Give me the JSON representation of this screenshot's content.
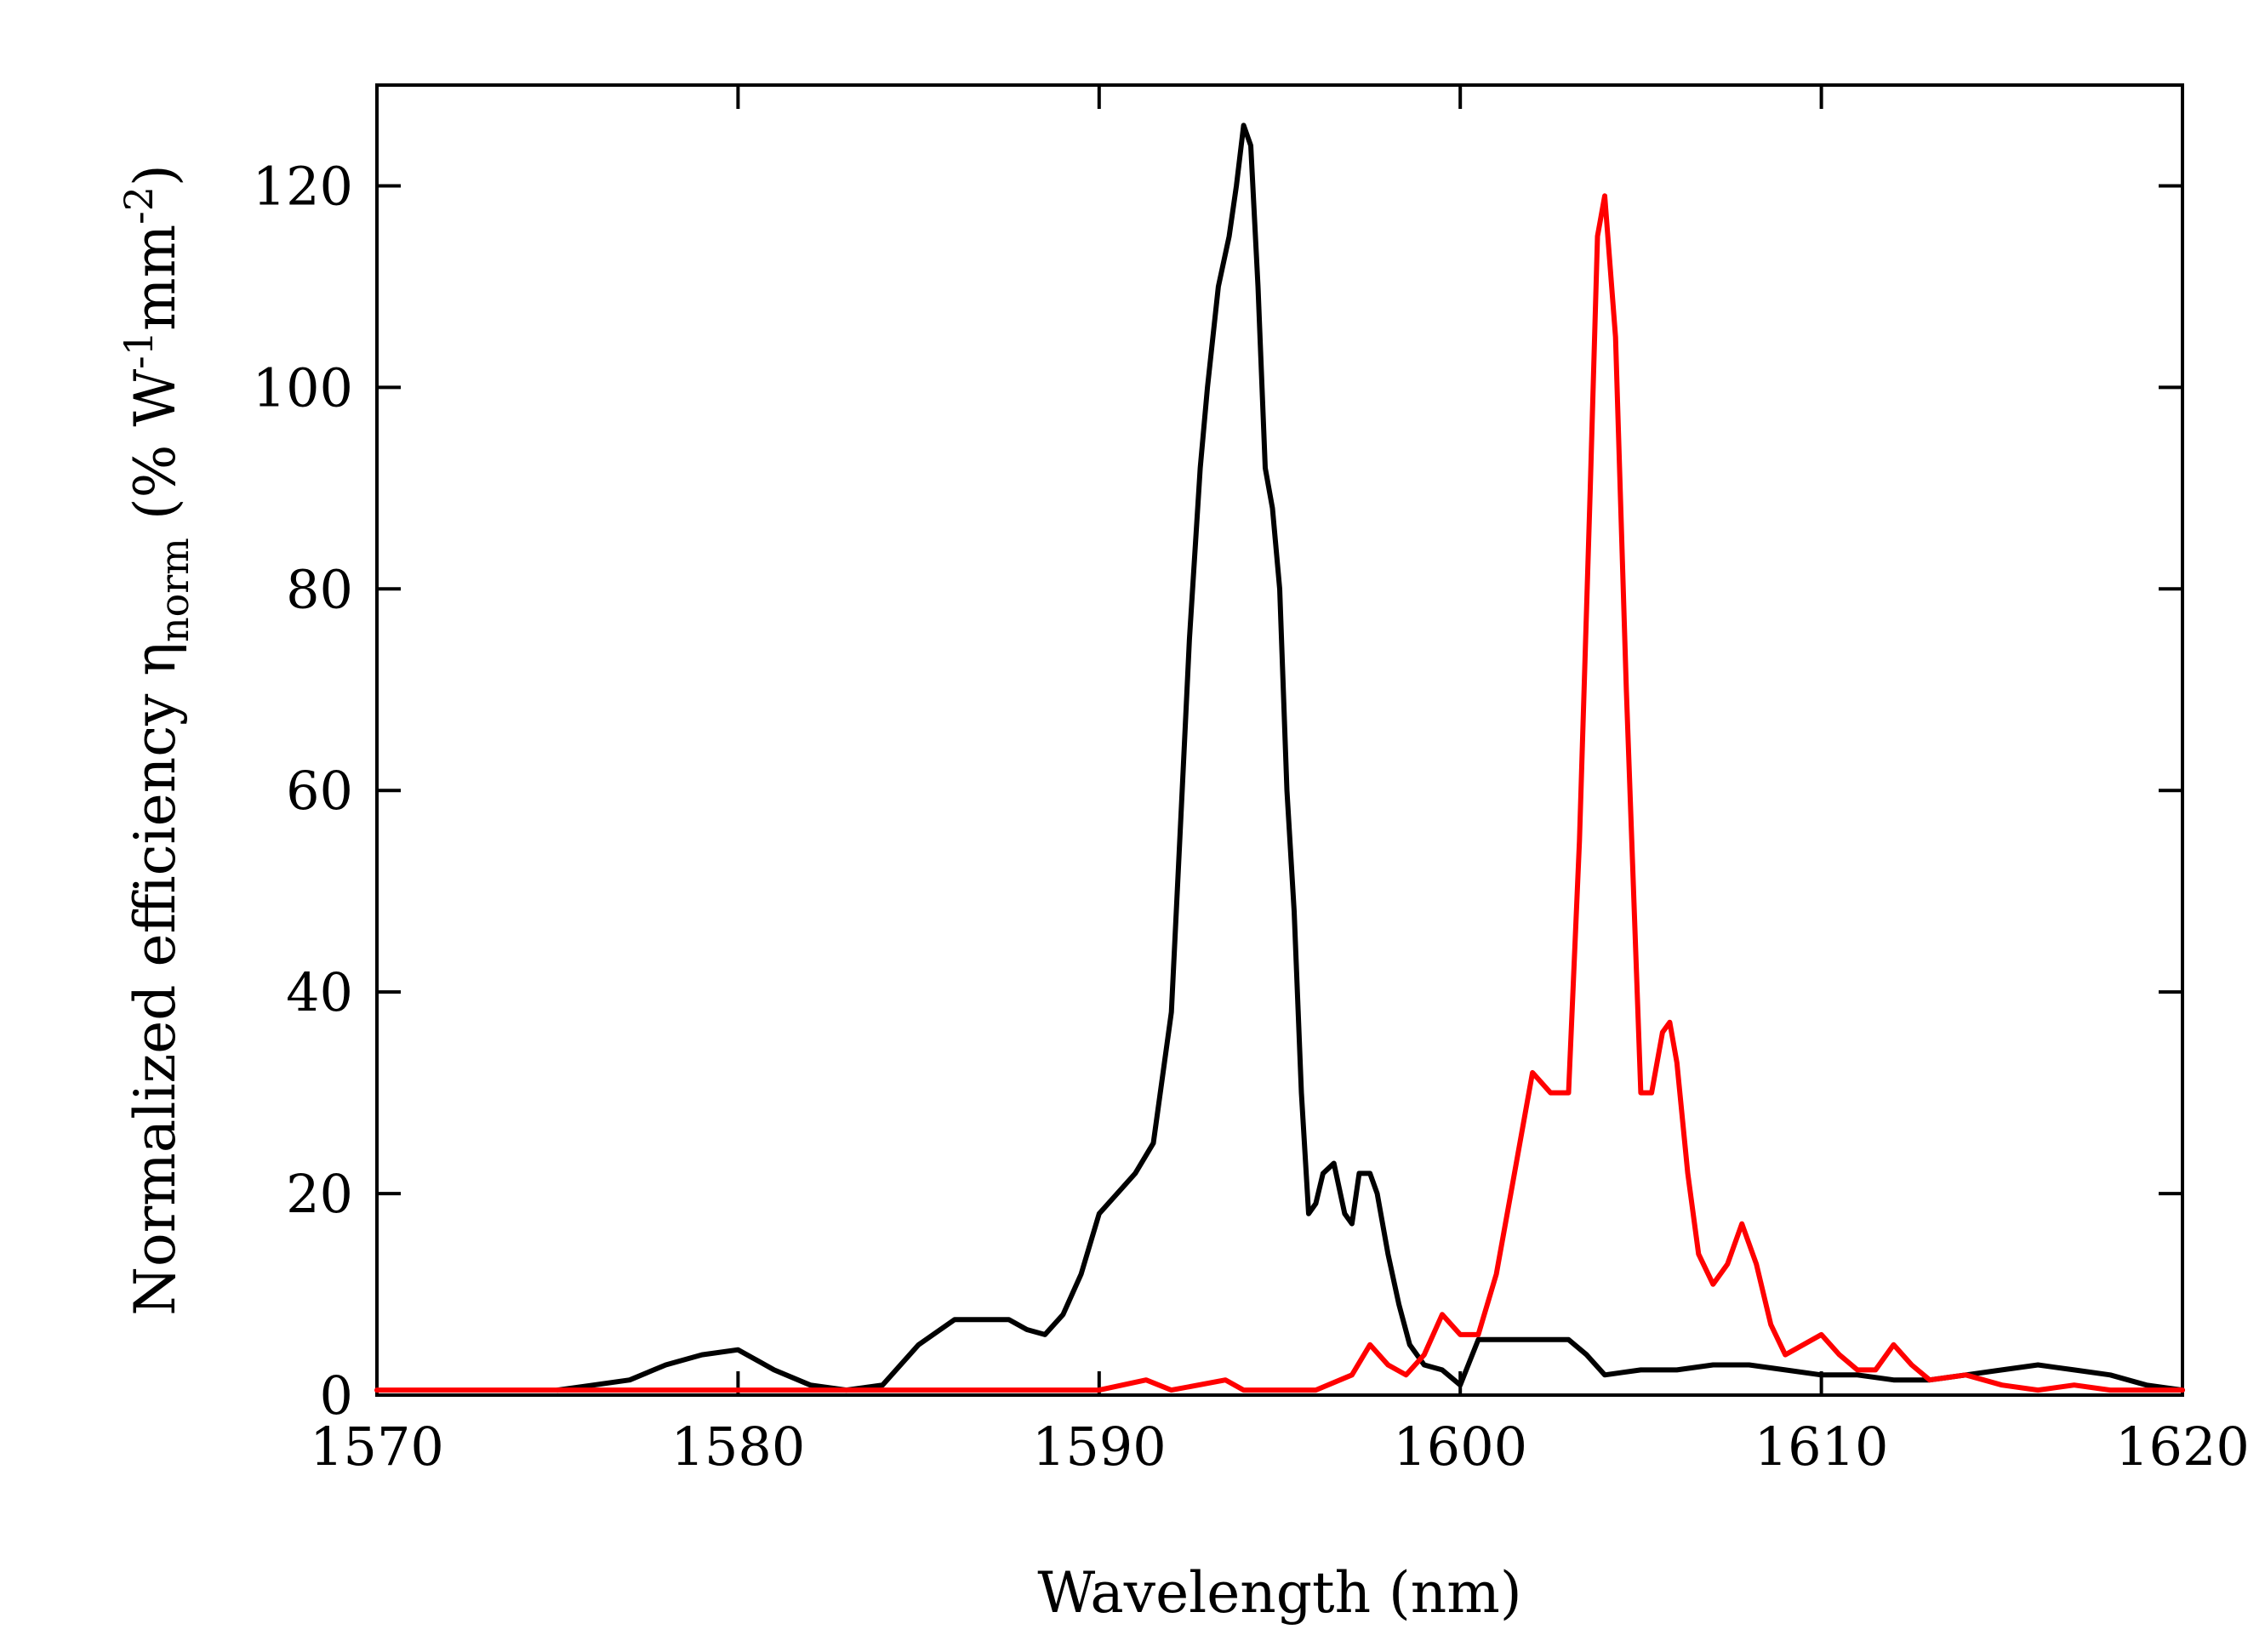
{
  "chart_data": {
    "type": "line",
    "xlabel": "Wavelength (nm)",
    "ylabel_parts": {
      "main": "Normalized efficiency η",
      "sub": "norm",
      "open": " (% W",
      "sup1": "-1",
      "mid": "mm",
      "sup2": "-2",
      "close": ")"
    },
    "xlim": [
      1570,
      1620
    ],
    "ylim": [
      0,
      130
    ],
    "xticks": [
      1570,
      1580,
      1590,
      1600,
      1610,
      1620
    ],
    "yticks": [
      0,
      20,
      40,
      60,
      80,
      100,
      120
    ],
    "xtick_labels": [
      "1570",
      "1580",
      "1590",
      "1600",
      "1610",
      "1620"
    ],
    "ytick_labels": [
      "0",
      "20",
      "40",
      "60",
      "80",
      "100",
      "120"
    ],
    "series": [
      {
        "name": "black",
        "color": "#000000",
        "x": [
          1575,
          1576,
          1577,
          1578,
          1579,
          1580,
          1580.5,
          1581,
          1582,
          1583,
          1584,
          1584.5,
          1585,
          1586,
          1587,
          1587.5,
          1588,
          1588.5,
          1589,
          1589.5,
          1590,
          1591,
          1591.5,
          1592,
          1592.3,
          1592.5,
          1592.8,
          1593,
          1593.3,
          1593.6,
          1593.8,
          1594,
          1594.2,
          1594.4,
          1594.6,
          1594.8,
          1595,
          1595.2,
          1595.4,
          1595.6,
          1595.8,
          1596,
          1596.2,
          1596.5,
          1596.8,
          1597,
          1597.2,
          1597.5,
          1597.7,
          1598,
          1598.3,
          1598.6,
          1599,
          1599.5,
          1600,
          1600.5,
          1601,
          1602,
          1603,
          1603.5,
          1604,
          1605,
          1606,
          1607,
          1608,
          1609,
          1610,
          1611,
          1612,
          1613,
          1614,
          1615,
          1616,
          1617,
          1618,
          1619,
          1620
        ],
        "y": [
          0.5,
          1,
          1.5,
          3,
          4,
          4.5,
          3.5,
          2.5,
          1,
          0.5,
          1,
          3,
          5,
          7.5,
          7.5,
          7.5,
          6.5,
          6,
          8,
          12,
          18,
          22,
          25,
          38,
          60,
          75,
          92,
          100,
          110,
          115,
          120,
          126,
          124,
          110,
          92,
          88,
          80,
          60,
          48,
          30,
          18,
          19,
          22,
          23,
          18,
          17,
          22,
          22,
          20,
          14,
          9,
          5,
          3,
          2.5,
          1,
          5.5,
          5.5,
          5.5,
          5.5,
          4,
          2,
          2.5,
          2.5,
          3,
          3,
          2.5,
          2,
          2,
          1.5,
          1.5,
          2,
          2.5,
          3,
          2.5,
          2,
          1,
          0.5
        ]
      },
      {
        "name": "red",
        "color": "#ff0000",
        "x": [
          1570,
          1575,
          1580,
          1585,
          1590,
          1591.3,
          1592,
          1593.5,
          1594,
          1596,
          1597,
          1597.5,
          1598,
          1598.5,
          1599,
          1599.5,
          1600,
          1600.5,
          1601,
          1601.5,
          1602,
          1602.5,
          1603,
          1603.3,
          1603.6,
          1603.8,
          1604,
          1604.3,
          1604.6,
          1605,
          1605.3,
          1605.6,
          1605.8,
          1606,
          1606.3,
          1606.6,
          1607,
          1607.4,
          1607.8,
          1608.2,
          1608.6,
          1609,
          1609.5,
          1610,
          1610.5,
          1611,
          1611.5,
          1612,
          1612.5,
          1613,
          1614,
          1615,
          1616,
          1617,
          1618,
          1619,
          1620
        ],
        "y": [
          0.5,
          0.5,
          0.5,
          0.5,
          0.5,
          1.5,
          0.5,
          1.5,
          0.5,
          0.5,
          2,
          5,
          3,
          2,
          4,
          8,
          6,
          6,
          12,
          22,
          32,
          30,
          30,
          55,
          90,
          115,
          119,
          105,
          70,
          30,
          30,
          36,
          37,
          33,
          22,
          14,
          11,
          13,
          17,
          13,
          7,
          4,
          5,
          6,
          4,
          2.5,
          2.5,
          5,
          3,
          1.5,
          2,
          1,
          0.5,
          1,
          0.5,
          0.5,
          0.5
        ]
      }
    ]
  }
}
